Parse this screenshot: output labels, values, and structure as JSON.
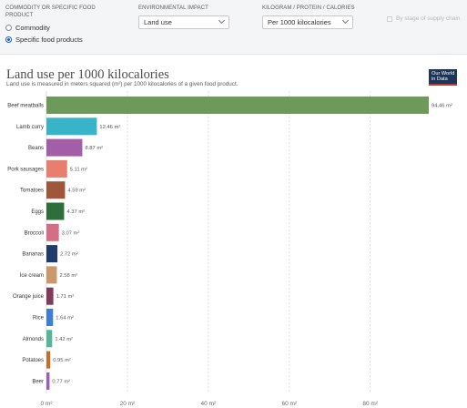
{
  "controls": {
    "commodity_label": "COMMODITY OR SPECIFIC FOOD PRODUCT",
    "radio_commodity": "Commodity",
    "radio_specific": "Specific food products",
    "env_label": "ENVIRONMENTAL IMPACT",
    "env_value": "Land use",
    "unit_label": "KILOGRAM / PROTEIN / CALORIES",
    "unit_value": "Per 1000 kilocalories",
    "stage_label": "By stage of supply chain"
  },
  "logo": {
    "line1": "Our World",
    "line2": "in Data"
  },
  "colors": {
    "accent": "#1a5fb4",
    "logo_bg": "#1d3557",
    "logo_bar": "#c0392b"
  },
  "chart_data": {
    "type": "bar",
    "orientation": "horizontal",
    "title": "Land use per 1000 kilocalories",
    "subtitle": "Land use is measured in meters squared (m²) per 1000 kilocalories of a given food product.",
    "unit": "m²",
    "categories": [
      "Beef meatballs",
      "Lamb curry",
      "Beans",
      "Pork sausages",
      "Tomatoes",
      "Eggs",
      "Broccoli",
      "Bananas",
      "Ice cream",
      "Orange juice",
      "Rice",
      "Almonds",
      "Potatoes",
      "Beer"
    ],
    "values": [
      94.46,
      12.46,
      8.87,
      5.11,
      4.59,
      4.37,
      3.07,
      2.72,
      2.58,
      1.71,
      1.64,
      1.42,
      0.95,
      0.77
    ],
    "value_labels": [
      "94.46 m²",
      "12.46 m²",
      "8.87 m²",
      "5.11 m²",
      "4.59 m²",
      "4.37 m²",
      "3.07 m²",
      "2.72 m²",
      "2.58 m²",
      "1.71 m²",
      "1.64 m²",
      "1.42 m²",
      "0.95 m²",
      "0.77 m²"
    ],
    "colors": [
      "#6d9a5a",
      "#38b3c7",
      "#a35ea8",
      "#e87e6e",
      "#a0563a",
      "#2e6e3b",
      "#d36e86",
      "#1f3b6a",
      "#c9996c",
      "#7f3b5c",
      "#3f7fcf",
      "#59b59a",
      "#c46f2a",
      "#9a60b7"
    ],
    "xticks": [
      0,
      20,
      40,
      60,
      80
    ],
    "xtick_labels": [
      "0 m²",
      "20 m²",
      "40 m²",
      "60 m²",
      "80 m²"
    ],
    "xlim": [
      0,
      95
    ],
    "grid": true,
    "legend": "none"
  }
}
